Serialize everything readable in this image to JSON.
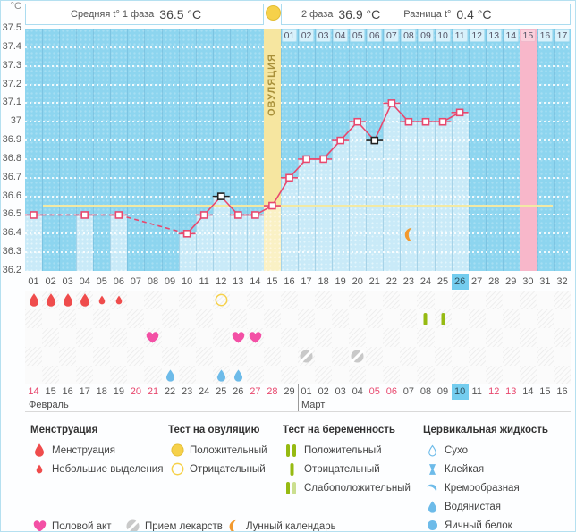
{
  "colors": {
    "chart_bg": "#8dd5ef",
    "bar_fill": "#c9eaf8",
    "ovulation_column": "#f6e6a0",
    "ovulation_bar": "#faf1c5",
    "pink_column": "#f8b7ca",
    "line": "#e8486e",
    "black_marker": "#222222",
    "coverline": "#f2e9a4",
    "highlight_cell": "#74cdef",
    "day_cell": "#d8f1fb",
    "day_cell_pink": "#fad0dc",
    "menstruation": "#ef4c4c",
    "heart": "#f350a5",
    "ovulation_test": "#f6d14a",
    "pregnancy_test": "#96ba12",
    "pregnancy_test_weak": "#cbdf8f",
    "cervical": "#6dbbe9",
    "moon": "#f2992e",
    "pill": "#c9c9c9",
    "weekend_date": "#e8486e"
  },
  "header": {
    "unit": "°C",
    "phase1_label": "Средняя t° 1 фаза",
    "phase1_value": "36.5 °C",
    "phase2_label": "2 фаза",
    "phase2_value": "36.9 °C",
    "diff_label": "Разница t°",
    "diff_value": "0.4 °C",
    "ovulation_column_label": "ОВУЛЯЦИЯ"
  },
  "chart_data": {
    "type": "line",
    "title": "Basal body temperature cycle chart",
    "ylabel": "°C",
    "ylim": [
      36.2,
      37.5
    ],
    "yticks": [
      "37.5",
      "37.4",
      "37.3",
      "37.2",
      "37.1",
      "37",
      "36.9",
      "36.8",
      "36.7",
      "36.6",
      "36.5",
      "36.4",
      "36.3",
      "36.2"
    ],
    "grid": true,
    "x_days_total": 32,
    "ovulation_day": 15,
    "pink_highlight_day": 30,
    "coverline": 36.55,
    "moon_day": 23,
    "phase2_days": [
      "01",
      "02",
      "03",
      "04",
      "05",
      "06",
      "07",
      "08",
      "09",
      "10",
      "11",
      "12",
      "13",
      "14",
      "15",
      "16",
      "17"
    ],
    "phase2_pink_day": "15",
    "points": [
      {
        "day": 1,
        "temp": 36.5
      },
      {
        "day": 4,
        "temp": 36.5
      },
      {
        "day": 6,
        "temp": 36.5
      },
      {
        "day": 10,
        "temp": 36.4
      },
      {
        "day": 11,
        "temp": 36.5
      },
      {
        "day": 12,
        "temp": 36.6,
        "marker": "black"
      },
      {
        "day": 13,
        "temp": 36.5
      },
      {
        "day": 14,
        "temp": 36.5
      },
      {
        "day": 15,
        "temp": 36.55
      },
      {
        "day": 16,
        "temp": 36.7
      },
      {
        "day": 17,
        "temp": 36.8
      },
      {
        "day": 18,
        "temp": 36.8
      },
      {
        "day": 19,
        "temp": 36.9
      },
      {
        "day": 20,
        "temp": 37.0
      },
      {
        "day": 21,
        "temp": 36.9,
        "marker": "black"
      },
      {
        "day": 22,
        "temp": 37.1
      },
      {
        "day": 23,
        "temp": 37.0
      },
      {
        "day": 24,
        "temp": 37.0
      },
      {
        "day": 25,
        "temp": 37.0
      },
      {
        "day": 26,
        "temp": 37.05
      }
    ]
  },
  "cycle_day_row": {
    "days": [
      "01",
      "02",
      "03",
      "04",
      "05",
      "06",
      "07",
      "08",
      "09",
      "10",
      "11",
      "12",
      "13",
      "14",
      "15",
      "16",
      "17",
      "18",
      "19",
      "20",
      "21",
      "22",
      "23",
      "24",
      "25",
      "26",
      "27",
      "28",
      "29",
      "30",
      "31",
      "32"
    ],
    "highlighted": "26"
  },
  "symbol_rows": {
    "menstruation": [
      {
        "day": 1,
        "size": "large"
      },
      {
        "day": 2,
        "size": "large"
      },
      {
        "day": 3,
        "size": "large"
      },
      {
        "day": 4,
        "size": "large"
      },
      {
        "day": 5,
        "size": "small"
      },
      {
        "day": 6,
        "size": "small"
      }
    ],
    "ovulation_tests": [
      {
        "day": 12,
        "result": "negative"
      }
    ],
    "pregnancy_tests": [
      {
        "day": 24,
        "result": "negative"
      },
      {
        "day": 25,
        "result": "negative"
      }
    ],
    "intercourse_days": [
      8,
      13,
      14
    ],
    "medication_days": [
      17,
      20
    ],
    "cervical_fluid": [
      {
        "day": 9,
        "type": "watery"
      },
      {
        "day": 12,
        "type": "watery"
      },
      {
        "day": 13,
        "type": "watery"
      }
    ]
  },
  "calendar": {
    "months": [
      {
        "name": "Февраль",
        "dates": [
          "14",
          "15",
          "16",
          "17",
          "18",
          "19",
          "20",
          "21",
          "22",
          "23",
          "24",
          "25",
          "26",
          "27",
          "28",
          "29"
        ],
        "weekend": [
          "14",
          "20",
          "21",
          "27",
          "28"
        ],
        "highlighted": ""
      },
      {
        "name": "Март",
        "dates": [
          "01",
          "02",
          "03",
          "04",
          "05",
          "06",
          "07",
          "08",
          "09",
          "10",
          "11",
          "12",
          "13",
          "14",
          "15",
          "16"
        ],
        "weekend": [
          "05",
          "06",
          "12",
          "13"
        ],
        "highlighted": "10"
      }
    ]
  },
  "legend": {
    "groups": [
      {
        "title": "Менструация",
        "items": [
          {
            "icon": "drop-large-red",
            "label": "Менструация"
          },
          {
            "icon": "drop-small-red",
            "label": "Небольшие выделения"
          }
        ]
      },
      {
        "title": "Тест на овуляцию",
        "items": [
          {
            "icon": "circle-filled-yellow",
            "label": "Положительный"
          },
          {
            "icon": "circle-outline-yellow",
            "label": "Отрицательный"
          }
        ]
      },
      {
        "title": "Тест на беременность",
        "items": [
          {
            "icon": "bars-double-green",
            "label": "Положительный"
          },
          {
            "icon": "bar-single-green",
            "label": "Отрицательный"
          },
          {
            "icon": "bars-weak-green",
            "label": "Слабоположительный"
          }
        ]
      },
      {
        "title": "Цервикальная жидкость",
        "items": [
          {
            "icon": "drop-outline-blue",
            "label": "Сухо"
          },
          {
            "icon": "hourglass-blue",
            "label": "Клейкая"
          },
          {
            "icon": "crescent-blue",
            "label": "Кремообразная"
          },
          {
            "icon": "drop-filled-blue",
            "label": "Водянистая"
          },
          {
            "icon": "circle-filled-blue",
            "label": "Яичный белок"
          }
        ]
      }
    ],
    "actions": [
      {
        "icon": "heart-pink",
        "label": "Половой акт"
      },
      {
        "icon": "pill-gray",
        "label": "Прием лекарств"
      },
      {
        "icon": "moon-orange",
        "label": "Лунный календарь"
      }
    ]
  }
}
